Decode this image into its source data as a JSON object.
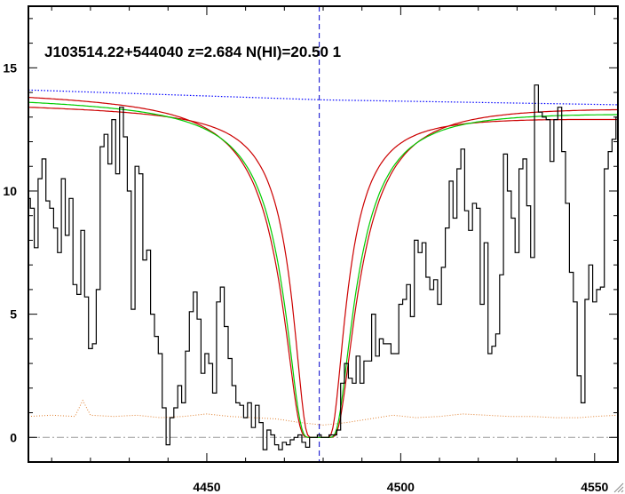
{
  "chart_data": {
    "type": "line",
    "title": "J103514.22+544040 z=2.684 N(HI)=20.50 1",
    "xlabel": "",
    "ylabel": "",
    "xlim": [
      4404,
      4556
    ],
    "ylim": [
      -1,
      17.5
    ],
    "x_ticks": [
      4450,
      4500,
      4550
    ],
    "x_tick_labels": [
      "4450",
      "4500",
      "4550"
    ],
    "y_ticks": [
      0,
      5,
      10,
      15
    ],
    "y_tick_labels": [
      "0",
      "5",
      "10",
      "15"
    ],
    "center_x": 4479,
    "zero_level": 0,
    "grid": false,
    "colors": {
      "spectrum": "#000000",
      "continuum": "#0000ff",
      "fit": "#00cc00",
      "fit_bounds": "#cc0000",
      "error": "#e08030",
      "center_line": "#0000cc",
      "zero_line": "#999999"
    },
    "series": [
      {
        "role": "spectrum",
        "x": [
          4404,
          4405,
          4406,
          4407,
          4408,
          4409,
          4410,
          4411,
          4412,
          4413,
          4414,
          4415,
          4416,
          4417,
          4418,
          4419,
          4420,
          4421,
          4422,
          4423,
          4424,
          4425,
          4426,
          4427,
          4428,
          4429,
          4430,
          4431,
          4432,
          4433,
          4434,
          4435,
          4436,
          4437,
          4438,
          4439,
          4440,
          4441,
          4442,
          4443,
          4444,
          4445,
          4446,
          4447,
          4448,
          4449,
          4450,
          4451,
          4452,
          4453,
          4454,
          4455,
          4456,
          4457,
          4458,
          4459,
          4460,
          4461,
          4462,
          4463,
          4464,
          4465,
          4466,
          4467,
          4468,
          4469,
          4470,
          4471,
          4472,
          4473,
          4474,
          4475,
          4476,
          4477,
          4478,
          4479,
          4480,
          4481,
          4482,
          4483,
          4484,
          4485,
          4486,
          4487,
          4488,
          4489,
          4490,
          4491,
          4492,
          4493,
          4494,
          4495,
          4496,
          4497,
          4498,
          4499,
          4500,
          4501,
          4502,
          4503,
          4504,
          4505,
          4506,
          4507,
          4508,
          4509,
          4510,
          4511,
          4512,
          4513,
          4514,
          4515,
          4516,
          4517,
          4518,
          4519,
          4520,
          4521,
          4522,
          4523,
          4524,
          4525,
          4526,
          4527,
          4528,
          4529,
          4530,
          4531,
          4532,
          4533,
          4534,
          4535,
          4536,
          4537,
          4538,
          4539,
          4540,
          4541,
          4542,
          4543,
          4544,
          4545,
          4546,
          4547,
          4548,
          4549,
          4550,
          4551,
          4552,
          4553,
          4554,
          4555,
          4556
        ],
        "y": [
          9.7,
          9.3,
          7.7,
          10.5,
          11.3,
          9.6,
          9.3,
          8.5,
          7.5,
          10.5,
          8.2,
          9.7,
          6.2,
          5.8,
          8.4,
          5.7,
          3.6,
          3.8,
          6.0,
          11.8,
          12.3,
          11.1,
          12.9,
          10.7,
          13.4,
          12.2,
          10.0,
          5.2,
          11.0,
          10.7,
          7.2,
          7.6,
          5.0,
          4.1,
          3.4,
          1.2,
          -0.3,
          0.8,
          1.2,
          2.1,
          1.4,
          3.5,
          5.1,
          5.9,
          4.8,
          2.6,
          3.4,
          3.0,
          1.8,
          5.5,
          6.1,
          4.5,
          3.2,
          2.1,
          1.4,
          1.3,
          0.8,
          1.4,
          0.4,
          1.3,
          0.6,
          -0.5,
          0.3,
          0.1,
          -0.3,
          -0.5,
          -0.2,
          -0.3,
          -0.1,
          0.0,
          0.1,
          -0.2,
          -0.4,
          0.0,
          0.0,
          0.1,
          0.0,
          0.0,
          0.1,
          0.1,
          0.3,
          2.2,
          3.0,
          2.4,
          2.2,
          3.3,
          2.2,
          3.1,
          3.1,
          5.0,
          3.3,
          4.0,
          3.8,
          3.8,
          3.4,
          3.4,
          5.4,
          5.6,
          6.2,
          4.9,
          8.0,
          7.5,
          7.9,
          6.5,
          6.0,
          6.4,
          5.4,
          6.9,
          8.5,
          10.4,
          8.9,
          10.9,
          11.7,
          9.2,
          8.4,
          9.5,
          9.3,
          5.4,
          7.9,
          3.4,
          3.7,
          4.2,
          6.6,
          11.5,
          10.0,
          8.9,
          7.5,
          10.9,
          11.3,
          9.4,
          7.3,
          14.3,
          13.2,
          13.0,
          12.9,
          11.2,
          12.9,
          13.4,
          11.6,
          9.5,
          6.7,
          5.5,
          2.5,
          1.4,
          5.6,
          7.0,
          5.5,
          6.0,
          6.1,
          10.9,
          11.6,
          12.1,
          13.0
        ],
        "step": true
      },
      {
        "role": "continuum",
        "x": [
          4404,
          4480,
          4556
        ],
        "y": [
          14.1,
          13.7,
          13.5
        ],
        "style": "dotted"
      },
      {
        "role": "fit",
        "center": 4479,
        "width": 8.6,
        "x_start": 4404,
        "x_end": 4556,
        "y_at_x_start": 13.6,
        "y_at_x_end": 13.1
      },
      {
        "role": "fit_upper",
        "center": 4479,
        "width": 9.2,
        "x_start": 4404,
        "x_end": 4556,
        "y_at_x_start": 13.8,
        "y_at_x_end": 13.3
      },
      {
        "role": "fit_lower",
        "center": 4479,
        "width": 6.6,
        "x_start": 4404,
        "x_end": 4556,
        "y_at_x_start": 13.4,
        "y_at_x_end": 12.9
      },
      {
        "role": "error",
        "x": [
          4404,
          4410,
          4416,
          4418,
          4420,
          4426,
          4432,
          4438,
          4444,
          4450,
          4456,
          4462,
          4468,
          4474,
          4480,
          4486,
          4492,
          4498,
          4504,
          4510,
          4516,
          4522,
          4528,
          4534,
          4540,
          4546,
          4550,
          4556
        ],
        "y": [
          0.85,
          0.9,
          0.85,
          1.5,
          0.9,
          0.85,
          0.9,
          0.8,
          0.85,
          0.95,
          0.85,
          0.8,
          0.75,
          0.6,
          0.5,
          0.6,
          0.75,
          0.9,
          0.8,
          0.85,
          0.95,
          0.9,
          0.85,
          0.85,
          0.8,
          0.8,
          0.85,
          0.9
        ],
        "style": "dotted"
      }
    ]
  }
}
